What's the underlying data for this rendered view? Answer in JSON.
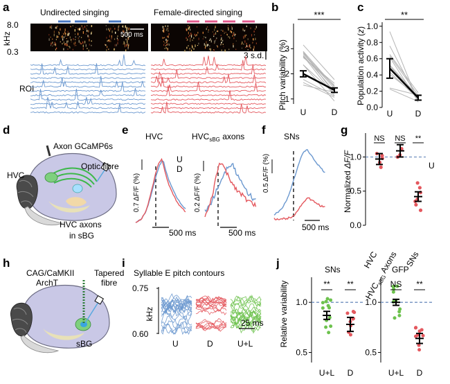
{
  "colors": {
    "undirected": "#6b98cf",
    "directed": "#e4585e",
    "light": "#6dc24e",
    "grey": "#b5b5b5",
    "dash": "#6f8fbf"
  },
  "panel_a": {
    "label": "a",
    "title_u": "Undirected singing",
    "title_d": "Female-directed singing",
    "khz_label": "kHz",
    "khz_top": "8.0",
    "khz_bottom": "0.3",
    "time_scale": "500 ms",
    "sd_scale": "3 s.d.",
    "roi_label": "ROI"
  },
  "panel_b": {
    "label": "b",
    "sig": "***"
  },
  "panel_c": {
    "label": "c",
    "sig": "**"
  },
  "panel_d": {
    "label": "d",
    "axon": "Axon GCaMP6s",
    "hvc": "HVC",
    "fibre": "Optic fibre",
    "axons1": "HVC axons",
    "axons2": "in sBG"
  },
  "panel_e": {
    "label": "e",
    "t1": "HVC",
    "t2_main": "HVC",
    "t2_sub": "sBG",
    "t2_tail": " axons",
    "legend_u": "U",
    "legend_d": "D",
    "scale1": "0.7 ΔF/F (%)",
    "scale2": "0.2 ΔF/F (%)",
    "time": "500 ms"
  },
  "panel_f": {
    "label": "f",
    "title": "SNs",
    "scale": "0.5 ΔF/F (%)",
    "time": "500 ms"
  },
  "panel_g": {
    "label": "g",
    "sig": [
      "NS",
      "NS",
      "**"
    ],
    "u_label": "U",
    "xlabel_sub": "sBG",
    "xlabel_axons": "Axons"
  },
  "panel_h": {
    "label": "h",
    "line1": "CAG/CaMKII",
    "line2": "ArchT",
    "fibre1": "Tapered",
    "fibre2": "fibre",
    "sbg": "sBG"
  },
  "panel_i": {
    "label": "i",
    "title": "Syllable E pitch contours",
    "ylabel": "kHz",
    "y_top": "0.75",
    "y_bottom": "0.60",
    "time": "25 ms",
    "groups": [
      "U",
      "D",
      "U+L"
    ]
  },
  "panel_j": {
    "label": "j",
    "sub1": "SNs",
    "sub2": "GFP",
    "sig1": [
      "**",
      "**"
    ],
    "sig2": [
      "NS",
      "**"
    ]
  },
  "chart_data": [
    {
      "type": "scatter",
      "title": "Pitch variability",
      "ylabel": "Pitch variability (%)",
      "categories": [
        "U",
        "D"
      ],
      "ylim": [
        0.8,
        4
      ],
      "yticks": [
        1,
        2,
        3
      ],
      "series": [
        {
          "name": "mean",
          "values": [
            2.0,
            1.35
          ]
        }
      ],
      "significance": "***"
    },
    {
      "type": "scatter",
      "title": "Population activity",
      "ylabel": "Population activity (z)",
      "categories": [
        "U",
        "D"
      ],
      "ylim": [
        0,
        1.05
      ],
      "yticks": [
        0,
        0.2,
        0.4,
        0.6,
        0.8,
        1.0
      ],
      "series": [
        {
          "name": "mean",
          "values": [
            0.48,
            0.12
          ]
        }
      ],
      "significance": "**"
    },
    {
      "type": "scatter",
      "title": "Normalized dF/F",
      "ylabel": "Normalized ΔF/F",
      "categories": [
        "HVC",
        "HVCsBG Axons",
        "SNs"
      ],
      "ylim": [
        0,
        1.35
      ],
      "yticks": [
        0,
        0.5,
        1.0
      ],
      "series": [
        {
          "name": "mean",
          "values": [
            0.97,
            1.09,
            0.42
          ]
        },
        {
          "name": "sem",
          "values": [
            0.08,
            0.09,
            0.07
          ]
        }
      ],
      "reference": 1.0,
      "significance": [
        "NS",
        "NS",
        "**"
      ]
    },
    {
      "type": "scatter",
      "title": "SNs",
      "ylabel": "Relative variability",
      "categories": [
        "U+L",
        "D"
      ],
      "ylim": [
        0.4,
        1.25
      ],
      "yticks": [
        0.5,
        1.0
      ],
      "series": [
        {
          "name": "mean",
          "values": [
            0.87,
            0.78
          ]
        },
        {
          "name": "sem",
          "values": [
            0.04,
            0.07
          ]
        }
      ],
      "reference": 1.0,
      "significance": [
        "**",
        "**"
      ]
    },
    {
      "type": "scatter",
      "title": "GFP",
      "ylabel": "Relative variability",
      "categories": [
        "U+L",
        "D"
      ],
      "ylim": [
        0.4,
        1.25
      ],
      "yticks": [
        0.5,
        1.0
      ],
      "series": [
        {
          "name": "mean",
          "values": [
            1.0,
            0.64
          ]
        },
        {
          "name": "sem",
          "values": [
            0.03,
            0.05
          ]
        }
      ],
      "reference": 1.0,
      "significance": [
        "NS",
        "**"
      ]
    }
  ]
}
